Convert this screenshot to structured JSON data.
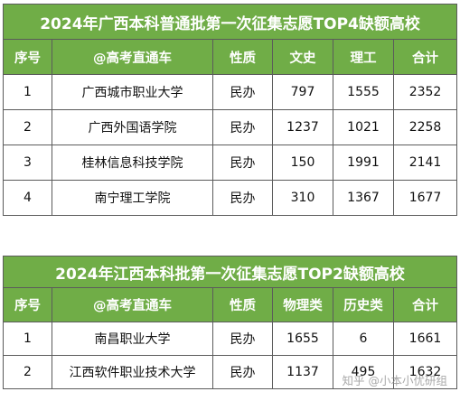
{
  "table1": {
    "title": "2024年广西本科普通批第一次征集志愿TOP4缺额高校",
    "headers": [
      "序号",
      "@高考直通车",
      "性质",
      "文史",
      "理工",
      "合计"
    ],
    "rows": [
      [
        "1",
        "广西城市职业大学",
        "民办",
        "797",
        "1555",
        "2352"
      ],
      [
        "2",
        "广西外国语学院",
        "民办",
        "1237",
        "1021",
        "2258"
      ],
      [
        "3",
        "桂林信息科技学院",
        "民办",
        "150",
        "1991",
        "2141"
      ],
      [
        "4",
        "南宁理工学院",
        "民办",
        "310",
        "1367",
        "1677"
      ]
    ]
  },
  "table2": {
    "title": "2024年江西本科批第一次征集志愿TOP2缺额高校",
    "headers": [
      "序号",
      "@高考直通车",
      "性质",
      "物理类",
      "历史类",
      "合计"
    ],
    "rows": [
      [
        "1",
        "南昌职业大学",
        "民办",
        "1655",
        "6",
        "1661"
      ],
      [
        "2",
        "江西软件职业技术大学",
        "民办",
        "1137",
        "495",
        "1632"
      ]
    ]
  },
  "watermark": "知乎 @小本小优研组",
  "colors": {
    "header_green": "#70ad47",
    "border": "#5b5b5b"
  }
}
